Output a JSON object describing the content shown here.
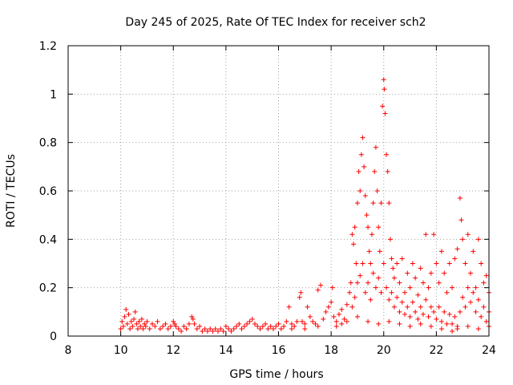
{
  "chart_data": {
    "type": "scatter",
    "title": "Day 245 of 2025, Rate Of TEC Index for receiver sch2",
    "xlabel": "GPS time / hours",
    "ylabel": "ROTI / TECUs",
    "xlim": [
      8,
      24
    ],
    "ylim": [
      0,
      1.2
    ],
    "xticks": [
      8,
      10,
      12,
      14,
      16,
      18,
      20,
      22,
      24
    ],
    "xtick_labels": [
      "8",
      "10",
      "12",
      "14",
      "16",
      "18",
      "20",
      "22",
      "24"
    ],
    "yticks": [
      0,
      0.2,
      0.4,
      0.6,
      0.8,
      1.0,
      1.2
    ],
    "ytick_labels": [
      "0",
      "0.2",
      "0.4",
      "0.6",
      "0.8",
      "1",
      "1.2"
    ],
    "grid": true,
    "marker": "+",
    "color": "#ff0000",
    "series": [
      {
        "name": "ROTI",
        "points": [
          [
            10.0,
            0.03
          ],
          [
            10.05,
            0.06
          ],
          [
            10.1,
            0.04
          ],
          [
            10.15,
            0.08
          ],
          [
            10.2,
            0.11
          ],
          [
            10.25,
            0.05
          ],
          [
            10.3,
            0.09
          ],
          [
            10.35,
            0.03
          ],
          [
            10.4,
            0.06
          ],
          [
            10.45,
            0.04
          ],
          [
            10.5,
            0.07
          ],
          [
            10.55,
            0.1
          ],
          [
            10.6,
            0.05
          ],
          [
            10.65,
            0.03
          ],
          [
            10.7,
            0.06
          ],
          [
            10.75,
            0.04
          ],
          [
            10.8,
            0.07
          ],
          [
            10.85,
            0.03
          ],
          [
            10.9,
            0.05
          ],
          [
            10.95,
            0.04
          ],
          [
            11.0,
            0.06
          ],
          [
            11.1,
            0.03
          ],
          [
            11.2,
            0.05
          ],
          [
            11.3,
            0.04
          ],
          [
            11.4,
            0.06
          ],
          [
            11.5,
            0.03
          ],
          [
            11.6,
            0.04
          ],
          [
            11.7,
            0.05
          ],
          [
            11.8,
            0.03
          ],
          [
            11.9,
            0.04
          ],
          [
            12.0,
            0.06
          ],
          [
            12.05,
            0.05
          ],
          [
            12.1,
            0.04
          ],
          [
            12.2,
            0.03
          ],
          [
            12.3,
            0.02
          ],
          [
            12.4,
            0.04
          ],
          [
            12.5,
            0.03
          ],
          [
            12.6,
            0.05
          ],
          [
            12.7,
            0.08
          ],
          [
            12.75,
            0.07
          ],
          [
            12.8,
            0.05
          ],
          [
            12.9,
            0.03
          ],
          [
            13.0,
            0.04
          ],
          [
            13.1,
            0.02
          ],
          [
            13.2,
            0.03
          ],
          [
            13.3,
            0.02
          ],
          [
            13.4,
            0.03
          ],
          [
            13.5,
            0.02
          ],
          [
            13.6,
            0.03
          ],
          [
            13.7,
            0.02
          ],
          [
            13.8,
            0.03
          ],
          [
            13.9,
            0.02
          ],
          [
            14.0,
            0.04
          ],
          [
            14.1,
            0.03
          ],
          [
            14.2,
            0.02
          ],
          [
            14.3,
            0.03
          ],
          [
            14.4,
            0.04
          ],
          [
            14.5,
            0.05
          ],
          [
            14.6,
            0.03
          ],
          [
            14.7,
            0.04
          ],
          [
            14.8,
            0.05
          ],
          [
            14.9,
            0.06
          ],
          [
            15.0,
            0.07
          ],
          [
            15.1,
            0.05
          ],
          [
            15.2,
            0.04
          ],
          [
            15.3,
            0.03
          ],
          [
            15.4,
            0.04
          ],
          [
            15.5,
            0.05
          ],
          [
            15.6,
            0.03
          ],
          [
            15.7,
            0.04
          ],
          [
            15.8,
            0.03
          ],
          [
            15.9,
            0.04
          ],
          [
            16.0,
            0.05
          ],
          [
            16.1,
            0.03
          ],
          [
            16.2,
            0.04
          ],
          [
            16.3,
            0.06
          ],
          [
            16.4,
            0.12
          ],
          [
            16.5,
            0.05
          ],
          [
            16.6,
            0.04
          ],
          [
            16.7,
            0.06
          ],
          [
            16.8,
            0.16
          ],
          [
            16.85,
            0.18
          ],
          [
            16.9,
            0.06
          ],
          [
            17.0,
            0.05
          ],
          [
            17.1,
            0.12
          ],
          [
            17.2,
            0.08
          ],
          [
            17.3,
            0.06
          ],
          [
            17.4,
            0.05
          ],
          [
            17.5,
            0.19
          ],
          [
            17.6,
            0.21
          ],
          [
            17.7,
            0.07
          ],
          [
            17.8,
            0.1
          ],
          [
            17.9,
            0.12
          ],
          [
            18.0,
            0.14
          ],
          [
            18.05,
            0.2
          ],
          [
            18.1,
            0.08
          ],
          [
            18.2,
            0.06
          ],
          [
            18.3,
            0.09
          ],
          [
            18.4,
            0.11
          ],
          [
            18.5,
            0.07
          ],
          [
            18.6,
            0.13
          ],
          [
            18.7,
            0.18
          ],
          [
            18.75,
            0.22
          ],
          [
            18.8,
            0.42
          ],
          [
            18.85,
            0.38
          ],
          [
            18.9,
            0.45
          ],
          [
            18.95,
            0.3
          ],
          [
            19.0,
            0.55
          ],
          [
            19.05,
            0.68
          ],
          [
            19.1,
            0.6
          ],
          [
            19.15,
            0.75
          ],
          [
            19.2,
            0.82
          ],
          [
            19.25,
            0.7
          ],
          [
            19.3,
            0.58
          ],
          [
            19.35,
            0.5
          ],
          [
            19.4,
            0.45
          ],
          [
            19.45,
            0.35
          ],
          [
            19.5,
            0.3
          ],
          [
            19.55,
            0.42
          ],
          [
            19.6,
            0.55
          ],
          [
            19.65,
            0.68
          ],
          [
            19.7,
            0.78
          ],
          [
            19.75,
            0.6
          ],
          [
            19.8,
            0.45
          ],
          [
            19.85,
            0.35
          ],
          [
            19.9,
            0.55
          ],
          [
            19.95,
            0.95
          ],
          [
            20.0,
            1.06
          ],
          [
            20.02,
            1.02
          ],
          [
            20.05,
            0.92
          ],
          [
            20.1,
            0.75
          ],
          [
            20.15,
            0.68
          ],
          [
            20.2,
            0.55
          ],
          [
            20.25,
            0.4
          ],
          [
            20.3,
            0.32
          ],
          [
            20.35,
            0.28
          ],
          [
            20.4,
            0.24
          ],
          [
            20.5,
            0.3
          ],
          [
            20.6,
            0.22
          ],
          [
            20.7,
            0.32
          ],
          [
            20.8,
            0.18
          ],
          [
            20.9,
            0.26
          ],
          [
            21.0,
            0.2
          ],
          [
            21.1,
            0.3
          ],
          [
            21.2,
            0.24
          ],
          [
            21.3,
            0.17
          ],
          [
            21.4,
            0.28
          ],
          [
            21.5,
            0.22
          ],
          [
            21.6,
            0.42
          ],
          [
            21.7,
            0.2
          ],
          [
            21.8,
            0.26
          ],
          [
            21.9,
            0.42
          ],
          [
            22.0,
            0.3
          ],
          [
            22.1,
            0.22
          ],
          [
            22.2,
            0.35
          ],
          [
            22.3,
            0.26
          ],
          [
            22.4,
            0.18
          ],
          [
            22.5,
            0.3
          ],
          [
            22.6,
            0.2
          ],
          [
            22.7,
            0.32
          ],
          [
            22.8,
            0.36
          ],
          [
            22.9,
            0.57
          ],
          [
            22.95,
            0.48
          ],
          [
            23.0,
            0.4
          ],
          [
            23.1,
            0.3
          ],
          [
            23.2,
            0.42
          ],
          [
            23.3,
            0.26
          ],
          [
            23.4,
            0.35
          ],
          [
            23.5,
            0.2
          ],
          [
            23.6,
            0.4
          ],
          [
            23.7,
            0.3
          ],
          [
            23.8,
            0.22
          ],
          [
            23.9,
            0.25
          ],
          [
            24.0,
            0.18
          ],
          [
            18.8,
            0.12
          ],
          [
            18.9,
            0.16
          ],
          [
            19.0,
            0.22
          ],
          [
            19.1,
            0.25
          ],
          [
            19.2,
            0.3
          ],
          [
            19.3,
            0.18
          ],
          [
            19.4,
            0.22
          ],
          [
            19.5,
            0.15
          ],
          [
            19.6,
            0.26
          ],
          [
            19.7,
            0.2
          ],
          [
            19.8,
            0.24
          ],
          [
            19.9,
            0.18
          ],
          [
            20.0,
            0.3
          ],
          [
            20.1,
            0.2
          ],
          [
            20.2,
            0.15
          ],
          [
            20.3,
            0.18
          ],
          [
            20.4,
            0.12
          ],
          [
            20.5,
            0.16
          ],
          [
            20.6,
            0.1
          ],
          [
            20.7,
            0.14
          ],
          [
            20.8,
            0.09
          ],
          [
            20.9,
            0.12
          ],
          [
            21.0,
            0.08
          ],
          [
            21.1,
            0.14
          ],
          [
            21.2,
            0.1
          ],
          [
            21.3,
            0.07
          ],
          [
            21.4,
            0.12
          ],
          [
            21.5,
            0.09
          ],
          [
            21.6,
            0.15
          ],
          [
            21.7,
            0.08
          ],
          [
            21.8,
            0.12
          ],
          [
            21.9,
            0.1
          ],
          [
            22.0,
            0.07
          ],
          [
            22.1,
            0.12
          ],
          [
            22.2,
            0.06
          ],
          [
            22.3,
            0.1
          ],
          [
            22.4,
            0.05
          ],
          [
            22.5,
            0.09
          ],
          [
            22.6,
            0.05
          ],
          [
            22.7,
            0.08
          ],
          [
            22.8,
            0.04
          ],
          [
            22.9,
            0.1
          ],
          [
            23.0,
            0.16
          ],
          [
            23.1,
            0.12
          ],
          [
            23.2,
            0.2
          ],
          [
            23.3,
            0.14
          ],
          [
            23.4,
            0.18
          ],
          [
            23.5,
            0.1
          ],
          [
            23.6,
            0.15
          ],
          [
            23.7,
            0.08
          ],
          [
            23.8,
            0.12
          ],
          [
            23.9,
            0.06
          ],
          [
            24.0,
            0.1
          ],
          [
            18.2,
            0.04
          ],
          [
            18.4,
            0.05
          ],
          [
            18.6,
            0.06
          ],
          [
            19.0,
            0.08
          ],
          [
            19.4,
            0.06
          ],
          [
            19.8,
            0.05
          ],
          [
            20.2,
            0.06
          ],
          [
            20.6,
            0.05
          ],
          [
            21.0,
            0.04
          ],
          [
            21.4,
            0.05
          ],
          [
            21.8,
            0.04
          ],
          [
            22.2,
            0.03
          ],
          [
            22.6,
            0.02
          ],
          [
            22.8,
            0.03
          ],
          [
            23.2,
            0.04
          ],
          [
            23.6,
            0.03
          ],
          [
            24.0,
            0.04
          ],
          [
            17.0,
            0.03
          ],
          [
            17.5,
            0.04
          ],
          [
            16.5,
            0.03
          ]
        ]
      }
    ]
  }
}
